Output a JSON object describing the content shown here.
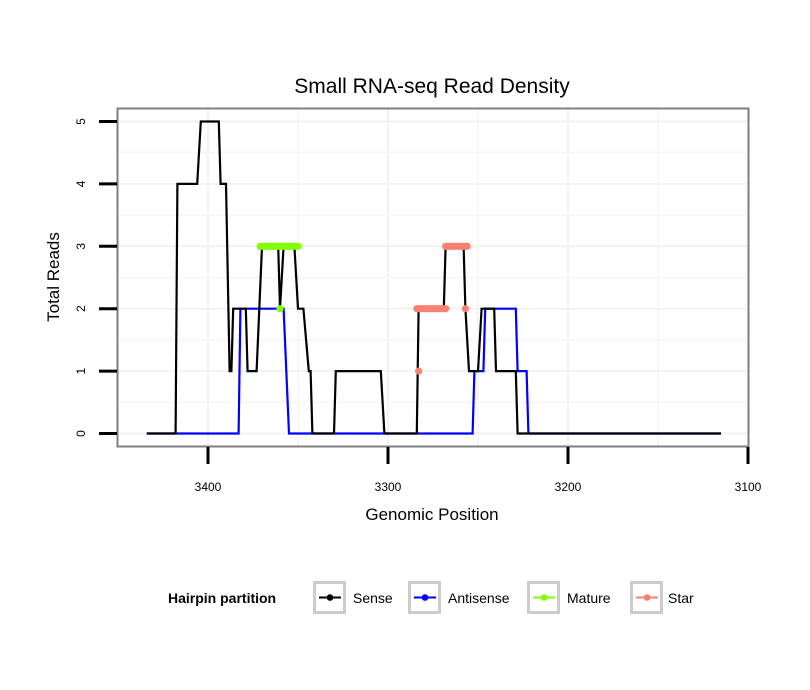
{
  "chart_data": {
    "type": "line",
    "title": "Small RNA-seq Read Density",
    "xlabel": "Genomic Position",
    "ylabel": "Total Reads",
    "xlim": [
      3450,
      3100
    ],
    "x_reversed": true,
    "ylim": [
      -0.2,
      5.2
    ],
    "xticks": [
      3400,
      3300,
      3200,
      3100
    ],
    "yticks": [
      0,
      1,
      2,
      3,
      4,
      5
    ],
    "grid": true,
    "legend": {
      "title": "Hairpin partition",
      "position": "bottom",
      "entries": [
        {
          "name": "Sense",
          "color": "#000000"
        },
        {
          "name": "Antisense",
          "color": "#0000FF"
        },
        {
          "name": "Mature",
          "color": "#7FFF00"
        },
        {
          "name": "Star",
          "color": "#FA8072"
        }
      ]
    },
    "series": [
      {
        "name": "Antisense",
        "kind": "line",
        "color": "#0000FF",
        "x": [
          3434,
          3383,
          3382,
          3358,
          3355,
          3253,
          3252,
          3247,
          3246,
          3229,
          3228,
          3223,
          3222,
          3115
        ],
        "y": [
          0,
          0,
          2,
          2,
          0,
          0,
          1,
          1,
          2,
          2,
          1,
          1,
          0,
          0
        ]
      },
      {
        "name": "Sense",
        "kind": "line",
        "color": "#000000",
        "x": [
          3434,
          3418,
          3417,
          3406,
          3404,
          3394,
          3393,
          3390,
          3388,
          3387,
          3386,
          3379,
          3378,
          3373,
          3370,
          3361,
          3360,
          3358,
          3352,
          3350,
          3347,
          3344,
          3343,
          3342,
          3330,
          3329,
          3304,
          3302,
          3284,
          3283,
          3269,
          3268,
          3258,
          3257,
          3255,
          3250,
          3248,
          3241,
          3240,
          3229,
          3228,
          3115
        ],
        "y": [
          0,
          0,
          4,
          4,
          5,
          5,
          4,
          4,
          1,
          1,
          2,
          2,
          1,
          1,
          3,
          3,
          2,
          3,
          3,
          2,
          2,
          1,
          1,
          0,
          0,
          1,
          1,
          0,
          0,
          2,
          2,
          3,
          3,
          2,
          1,
          1,
          2,
          2,
          1,
          1,
          0,
          0
        ]
      },
      {
        "name": "Mature",
        "kind": "points",
        "color": "#7FFF00",
        "x": [
          3371,
          3370,
          3369,
          3368,
          3367,
          3366,
          3365,
          3364,
          3363,
          3362,
          3361,
          3360,
          3359,
          3358,
          3357,
          3356,
          3355,
          3354,
          3353,
          3352,
          3351,
          3350
        ],
        "y": [
          3,
          3,
          3,
          3,
          3,
          3,
          3,
          3,
          3,
          3,
          3,
          2,
          3,
          3,
          3,
          3,
          3,
          3,
          3,
          3,
          3,
          3
        ]
      },
      {
        "name": "Star",
        "kind": "points",
        "color": "#FA8072",
        "x": [
          3283,
          3284,
          3283,
          3282,
          3281,
          3280,
          3279,
          3278,
          3277,
          3276,
          3275,
          3274,
          3273,
          3272,
          3271,
          3270,
          3269,
          3268,
          3268,
          3267,
          3266,
          3265,
          3264,
          3263,
          3262,
          3261,
          3260,
          3259,
          3258,
          3257,
          3256,
          3257
        ],
        "y": [
          1,
          2,
          2,
          2,
          2,
          2,
          2,
          2,
          2,
          2,
          2,
          2,
          2,
          2,
          2,
          2,
          2,
          2,
          3,
          3,
          3,
          3,
          3,
          3,
          3,
          3,
          3,
          3,
          3,
          3,
          3,
          2
        ]
      }
    ]
  }
}
